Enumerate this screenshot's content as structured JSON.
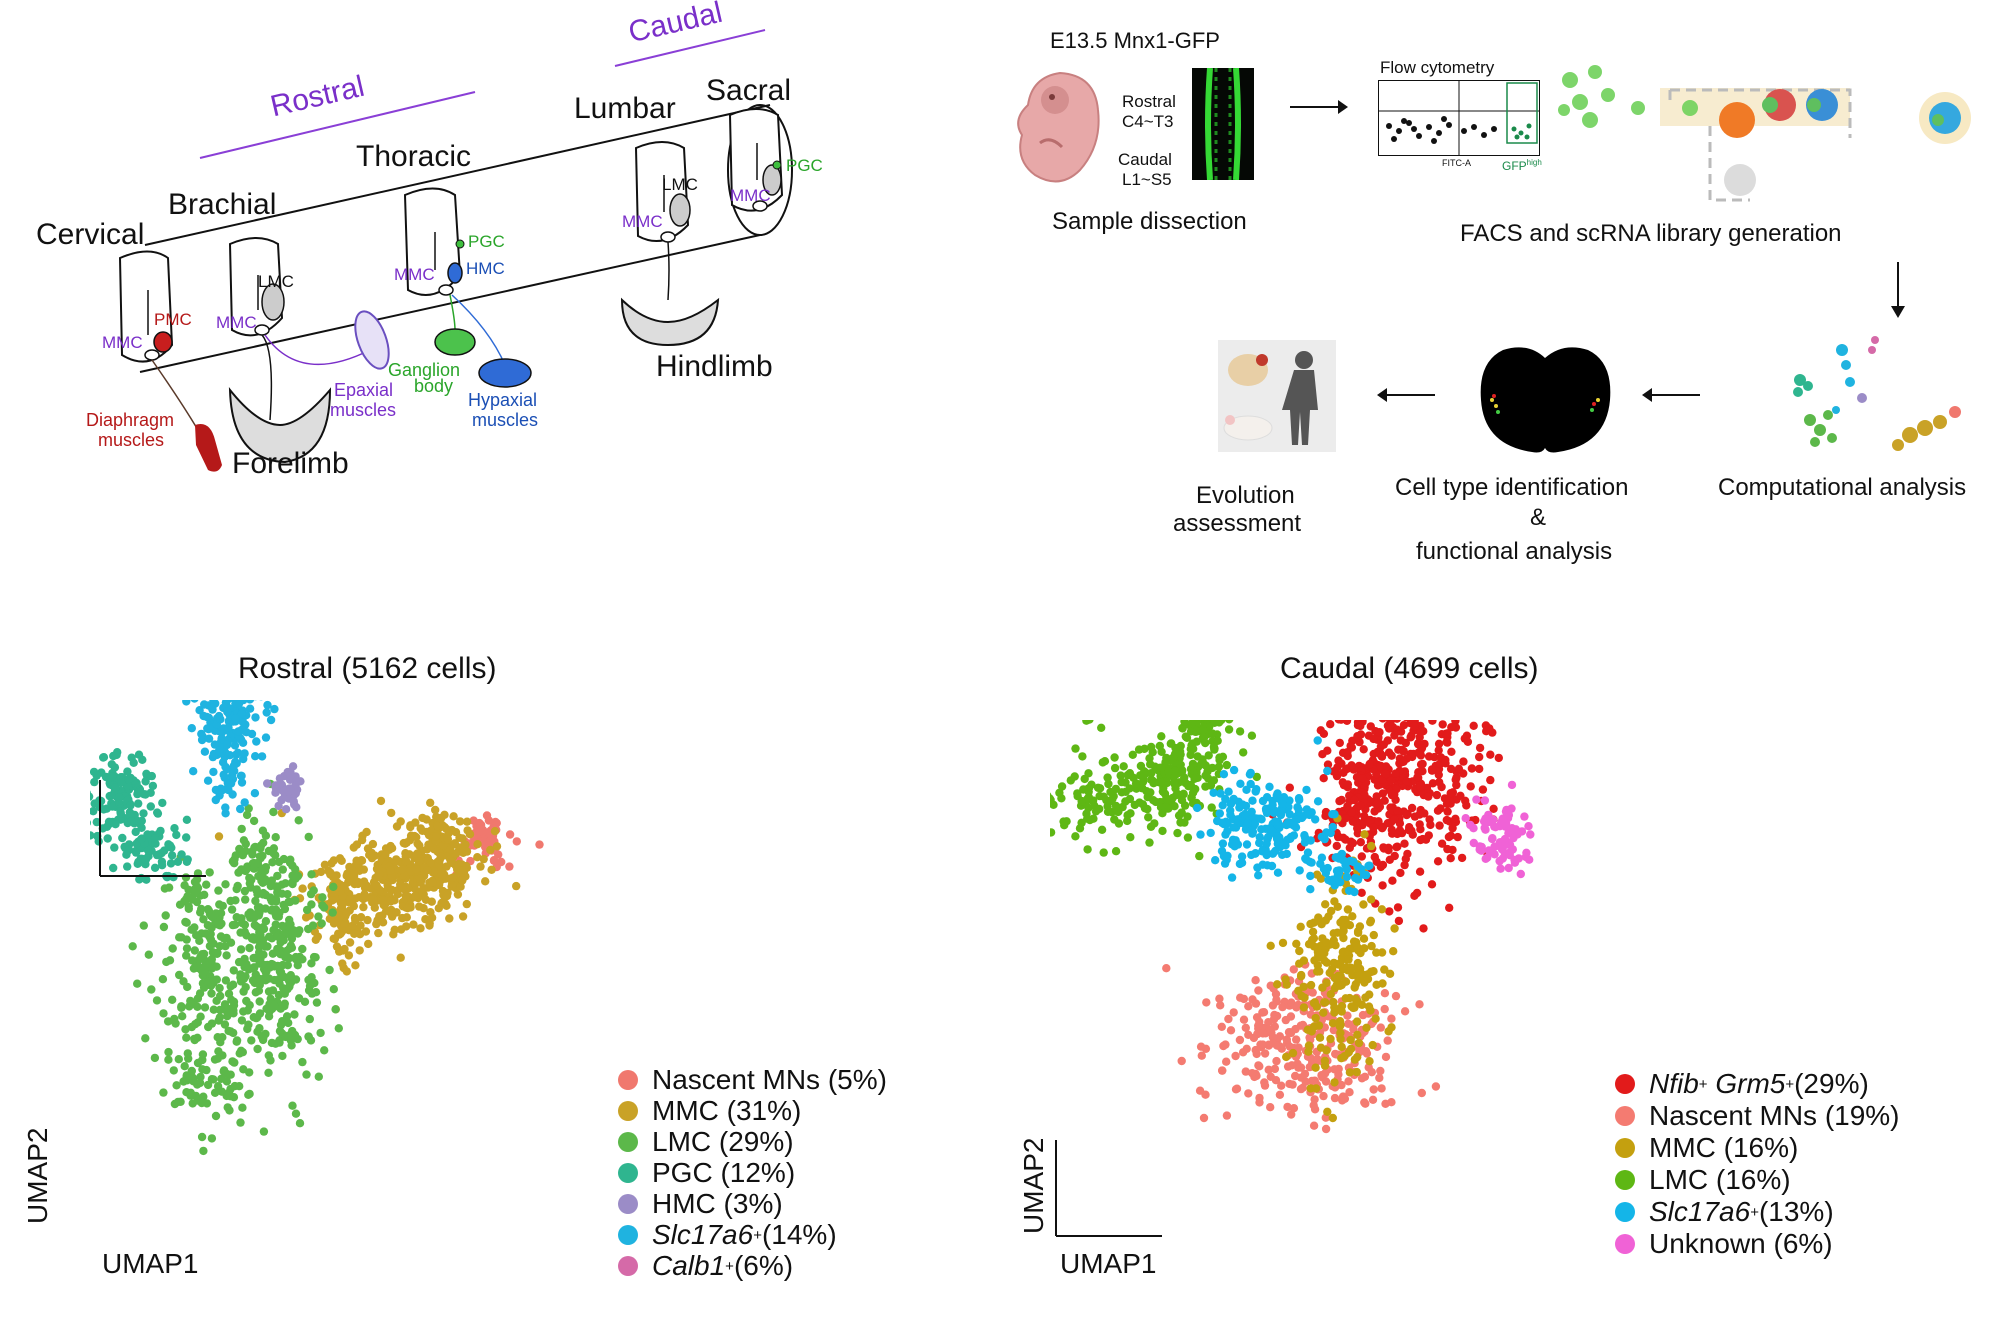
{
  "panel_a": {
    "region_labels": {
      "rostral": "Rostral",
      "caudal": "Caudal"
    },
    "segments": {
      "cervical": "Cervical",
      "brachial": "Brachial",
      "thoracic": "Thoracic",
      "lumbar": "Lumbar",
      "sacral": "Sacral"
    },
    "column_labels": {
      "mmc": "MMC",
      "pmc": "PMC",
      "lmc": "LMC",
      "pgc": "PGC",
      "hmc": "HMC"
    },
    "targets": {
      "diaphragm_line1": "Diaphragm",
      "diaphragm_line2": "muscles",
      "forelimb": "Forelimb",
      "epaxial_line1": "Epaxial",
      "epaxial_line2": "muscles",
      "ganglion_line1": "Ganglion",
      "ganglion_line2": "body",
      "hypaxial_line1": "Hypaxial",
      "hypaxial_line2": "muscles",
      "hindlimb": "Hindlimb"
    }
  },
  "panel_b": {
    "sample_title": "E13.5 Mnx1-GFP",
    "rostral_label": "Rostral",
    "rostral_range": "C4~T3",
    "caudal_label": "Caudal",
    "caudal_range": "L1~S5",
    "sample_caption": "Sample dissection",
    "flow_title": "Flow cytometry",
    "flow_xaxis": "FITC-A",
    "flow_gate": "GFP",
    "flow_gate_sup": "high",
    "facs_caption": "FACS and scRNA library generation",
    "computational_caption": "Computational analysis",
    "celltype_line1": "Cell type identification",
    "celltype_line2": "&",
    "celltype_line3": "functional analysis",
    "evolution_line1": "Evolution",
    "evolution_line2": "assessment"
  },
  "chart_data": [
    {
      "type": "scatter",
      "title": "Rostral (5162 cells)",
      "xlabel": "UMAP1",
      "ylabel": "UMAP2",
      "legend_position": "right",
      "series": [
        {
          "name": "Nascent MNs",
          "percent": 5,
          "label": "Nascent MNs (5%)",
          "color": "#f0786e"
        },
        {
          "name": "MMC",
          "percent": 31,
          "label": "MMC (31%)",
          "color": "#c9a227"
        },
        {
          "name": "LMC",
          "percent": 29,
          "label": "LMC (29%)",
          "color": "#5cb84a"
        },
        {
          "name": "PGC",
          "percent": 12,
          "label": "PGC (12%)",
          "color": "#2fb58f"
        },
        {
          "name": "HMC",
          "percent": 3,
          "label": "HMC (3%)",
          "color": "#9b8cc7"
        },
        {
          "name": "Slc17a6+",
          "percent": 14,
          "label_main": "Slc17a6",
          "label_sup": "+",
          "label_rest": "(14%)",
          "color": "#1fb3e0"
        },
        {
          "name": "Calb1+",
          "percent": 6,
          "label_main": "Calb1",
          "label_sup": "+",
          "label_rest": " (6%)",
          "color": "#d56aa8"
        }
      ]
    },
    {
      "type": "scatter",
      "title": "Caudal (4699 cells)",
      "xlabel": "UMAP1",
      "ylabel": "UMAP2",
      "legend_position": "right",
      "series": [
        {
          "name": "Nfib+ Grm5+",
          "percent": 29,
          "label_main": "Nfib",
          "label_sup": "+",
          "label_main2": "Grm5",
          "label_sup2": "+",
          "label_rest": " (29%)",
          "color": "#e21b1b"
        },
        {
          "name": "Nascent MNs",
          "percent": 19,
          "label": "Nascent MNs (19%)",
          "color": "#f47b71"
        },
        {
          "name": "MMC",
          "percent": 16,
          "label": "MMC (16%)",
          "color": "#c4a00f"
        },
        {
          "name": "LMC",
          "percent": 16,
          "label": "LMC (16%)",
          "color": "#5eb714"
        },
        {
          "name": "Slc17a6+",
          "percent": 13,
          "label_main": "Slc17a6",
          "label_sup": "+",
          "label_rest": " (13%)",
          "color": "#14b5e8"
        },
        {
          "name": "Unknown",
          "percent": 6,
          "label": "Unknown (6%)",
          "color": "#f062d6"
        }
      ]
    }
  ]
}
